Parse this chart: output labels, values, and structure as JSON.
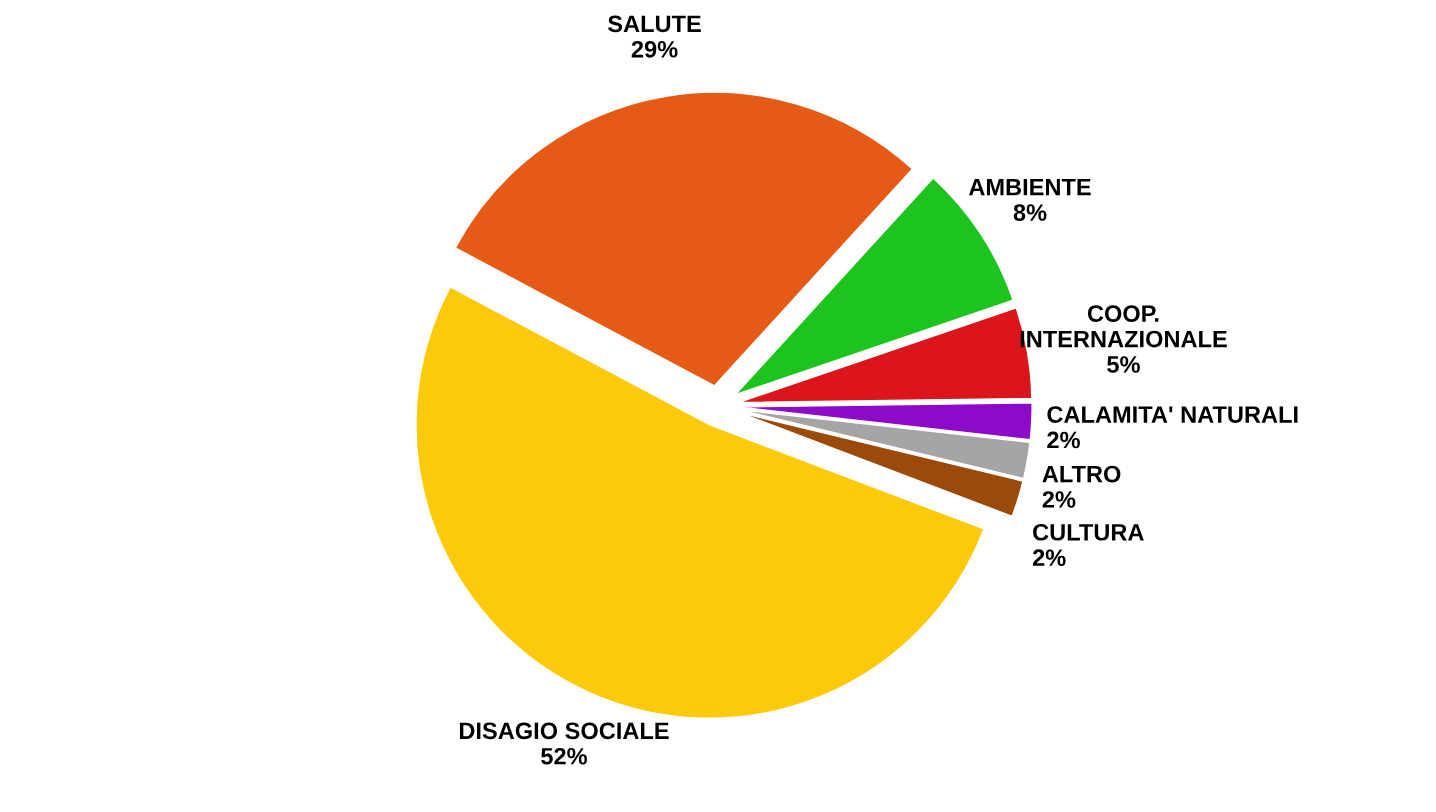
{
  "chart_data": {
    "type": "pie",
    "categories": [
      "SALUTE",
      "AMBIENTE",
      "COOP.\nINTERNAZIONALE",
      "CALAMITA' NATURALI",
      "ALTRO",
      "CULTURA",
      "DISAGIO SOCIALE"
    ],
    "values": [
      29,
      8,
      5,
      2,
      2,
      2,
      52
    ],
    "colors": [
      "#e55a14",
      "#1ec41e",
      "#dc141c",
      "#8c0ac8",
      "#a5a5a5",
      "#9c4a0a",
      "#fdca0a"
    ],
    "value_labels": [
      "29%",
      "8%",
      "5%",
      "2%",
      "2%",
      "2%",
      "52%"
    ],
    "legend": false
  }
}
